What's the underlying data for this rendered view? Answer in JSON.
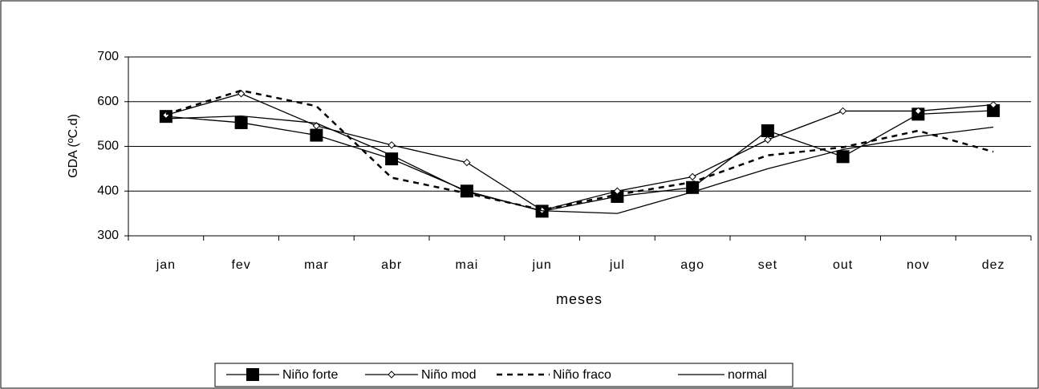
{
  "chart_data": {
    "type": "line",
    "x_label": "meses",
    "y_label": "GDA (ºC.d)",
    "categories": [
      "jan",
      "fev",
      "mar",
      "abr",
      "mai",
      "jun",
      "jul",
      "ago",
      "set",
      "out",
      "nov",
      "dez"
    ],
    "series": [
      {
        "name": "Niño forte",
        "color": "#000000",
        "marker": "square",
        "dash": false,
        "values": [
          567,
          553,
          525,
          472,
          400,
          355,
          388,
          408,
          535,
          477,
          572,
          580
        ]
      },
      {
        "name": "Niño mod",
        "color": "#000000",
        "marker": "diamond",
        "dash": false,
        "values": [
          570,
          618,
          546,
          503,
          464,
          357,
          400,
          432,
          515,
          579,
          579,
          593
        ]
      },
      {
        "name": "Niño fraco",
        "color": "#000000",
        "marker": "none",
        "dash": true,
        "values": [
          572,
          625,
          590,
          430,
          395,
          358,
          392,
          420,
          480,
          498,
          535,
          488
        ]
      },
      {
        "name": "normal",
        "color": "#000000",
        "marker": "none",
        "dash": false,
        "values": [
          562,
          568,
          552,
          480,
          398,
          356,
          350,
          398,
          450,
          493,
          522,
          543
        ]
      }
    ],
    "ylim": [
      300,
      700
    ],
    "yticks": [
      300,
      400,
      500,
      600,
      700
    ],
    "grid": true,
    "legend": "bottom"
  }
}
